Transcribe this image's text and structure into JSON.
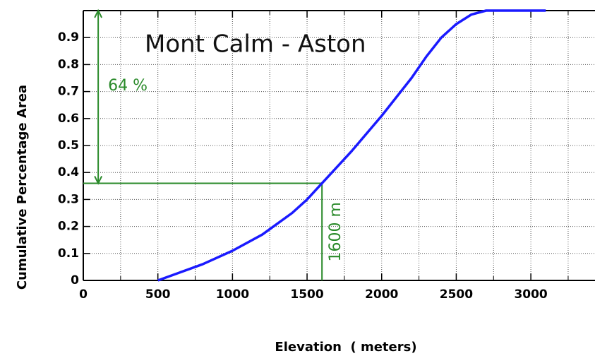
{
  "chart_data": {
    "type": "line",
    "title": "Mont Calm - Aston",
    "x_label": "Elevation  ( meters)",
    "y_label": "Cumulative Percentage Area",
    "x": [
      500,
      600,
      800,
      1000,
      1200,
      1400,
      1500,
      1600,
      1800,
      2000,
      2200,
      2300,
      2400,
      2500,
      2600,
      2700,
      3100
    ],
    "series": [
      {
        "name": "Mont Calm - Aston",
        "color": "#1a1aff",
        "values": [
          0,
          0.02,
          0.06,
          0.11,
          0.17,
          0.25,
          0.3,
          0.36,
          0.48,
          0.61,
          0.75,
          0.83,
          0.9,
          0.95,
          0.985,
          1,
          1
        ]
      }
    ],
    "xlim": [
      0,
      3430
    ],
    "ylim": [
      0,
      1
    ],
    "xticks": [
      0,
      500,
      1000,
      1500,
      2000,
      2500,
      3000
    ],
    "yticks": [
      0,
      0.1,
      0.2,
      0.3,
      0.4,
      0.5,
      0.6,
      0.7,
      0.8,
      0.9
    ],
    "x_minor_grid": [
      250,
      750,
      1250,
      1750,
      2250,
      2750,
      3250
    ],
    "grid": true,
    "annotations": [
      {
        "text": "64 %",
        "arrow_x": 100,
        "y_from": 0.36,
        "y_to": 1
      },
      {
        "text": "1600 m",
        "x": 1600,
        "y": 0.36
      }
    ],
    "annotation_color": "#2a8a2a"
  }
}
